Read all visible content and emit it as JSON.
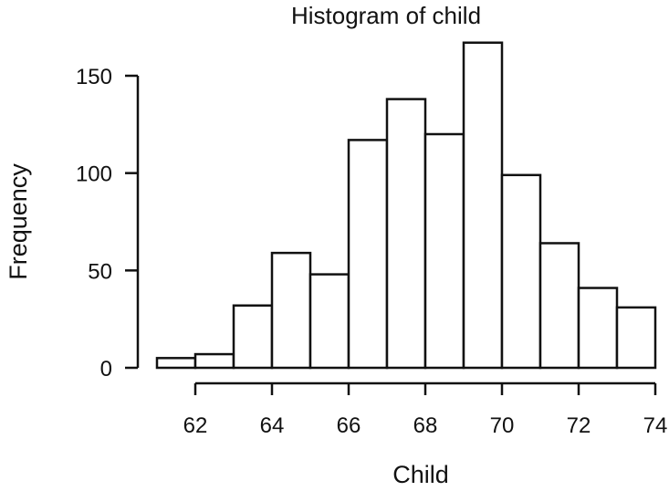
{
  "chart_data": {
    "type": "bar",
    "title": "Histogram of child",
    "xlabel": "Child",
    "ylabel": "Frequency",
    "bins": [
      {
        "from": 61,
        "to": 62,
        "count": 5
      },
      {
        "from": 62,
        "to": 63,
        "count": 7
      },
      {
        "from": 63,
        "to": 64,
        "count": 32
      },
      {
        "from": 64,
        "to": 65,
        "count": 59
      },
      {
        "from": 65,
        "to": 66,
        "count": 48
      },
      {
        "from": 66,
        "to": 67,
        "count": 117
      },
      {
        "from": 67,
        "to": 68,
        "count": 138
      },
      {
        "from": 68,
        "to": 69,
        "count": 120
      },
      {
        "from": 69,
        "to": 70,
        "count": 167
      },
      {
        "from": 70,
        "to": 71,
        "count": 99
      },
      {
        "from": 71,
        "to": 72,
        "count": 64
      },
      {
        "from": 72,
        "to": 73,
        "count": 41
      },
      {
        "from": 73,
        "to": 74,
        "count": 31
      }
    ],
    "x_ticks": [
      62,
      64,
      66,
      68,
      70,
      72,
      74
    ],
    "y_ticks": [
      0,
      50,
      100,
      150
    ],
    "xlim": [
      62,
      74
    ],
    "ylim": [
      0,
      150
    ],
    "grid": false,
    "colors": {
      "bar_fill": "#ffffff",
      "bar_stroke": "#111111"
    }
  }
}
